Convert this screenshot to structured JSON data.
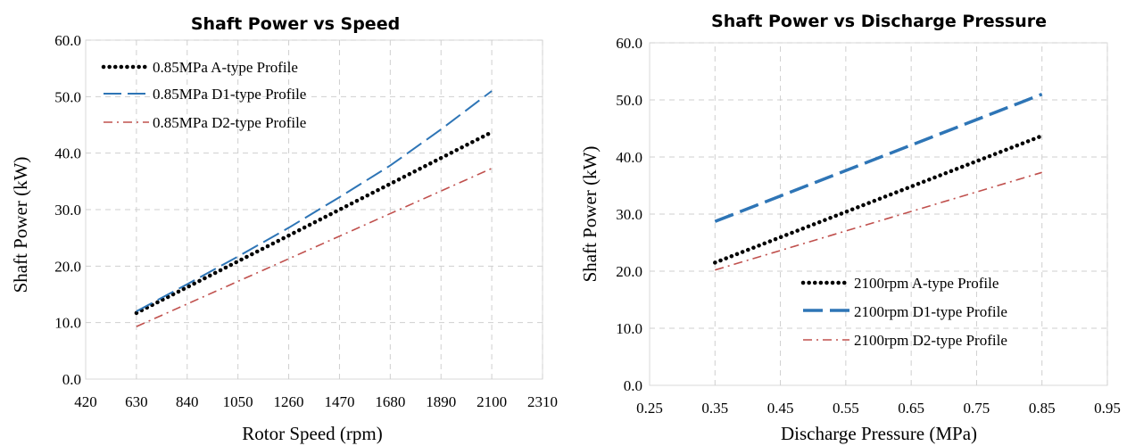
{
  "chart_data": [
    {
      "type": "line",
      "title": "Shaft Power vs Speed",
      "xlabel": "Rotor Speed (rpm)",
      "ylabel": "Shaft Power (kW)",
      "xlim": [
        420,
        2310
      ],
      "ylim": [
        0,
        60
      ],
      "xticks": [
        "420",
        "630",
        "840",
        "1050",
        "1260",
        "1470",
        "1680",
        "1890",
        "2100",
        "2310"
      ],
      "yticks": [
        "0.0",
        "10.0",
        "20.0",
        "30.0",
        "40.0",
        "50.0",
        "60.0"
      ],
      "grid": true,
      "legend_position": "top-left",
      "series": [
        {
          "name": "0.85MPa A-type Profile",
          "style": "dotted",
          "color": "#000000",
          "x": [
            630,
            2100
          ],
          "y": [
            11.7,
            43.7
          ]
        },
        {
          "name": "0.85MPa D1-type Profile",
          "style": "dashed",
          "color": "#2e75b6",
          "x": [
            630,
            840,
            1050,
            1260,
            1470,
            1680,
            1890,
            2100
          ],
          "y": [
            12.0,
            16.8,
            21.7,
            26.8,
            32.2,
            37.8,
            44.2,
            51.0
          ]
        },
        {
          "name": "0.85MPa D2-type Profile",
          "style": "dashdot",
          "color": "#c0504d",
          "x": [
            630,
            2100
          ],
          "y": [
            9.3,
            37.3
          ]
        }
      ]
    },
    {
      "type": "line",
      "title": "Shaft Power vs Discharge Pressure",
      "xlabel": "Discharge Pressure (MPa)",
      "ylabel": "Shaft Power (kW)",
      "xlim": [
        0.25,
        0.95
      ],
      "ylim": [
        0,
        60
      ],
      "xticks": [
        "0.25",
        "0.35",
        "0.45",
        "0.55",
        "0.65",
        "0.75",
        "0.85",
        "0.95"
      ],
      "yticks": [
        "0.0",
        "10.0",
        "20.0",
        "30.0",
        "40.0",
        "50.0",
        "60.0"
      ],
      "grid": true,
      "legend_position": "bottom-right",
      "series": [
        {
          "name": "2100rpm A-type Profile",
          "style": "dotted",
          "color": "#000000",
          "x": [
            0.35,
            0.85
          ],
          "y": [
            21.5,
            43.7
          ]
        },
        {
          "name": "2100rpm D1-type Profile",
          "style": "dashed",
          "color": "#2e75b6",
          "x": [
            0.35,
            0.85
          ],
          "y": [
            28.7,
            51.0
          ]
        },
        {
          "name": "2100rpm D2-type Profile",
          "style": "dashdot",
          "color": "#c0504d",
          "x": [
            0.35,
            0.85
          ],
          "y": [
            20.2,
            37.3
          ]
        }
      ]
    }
  ]
}
